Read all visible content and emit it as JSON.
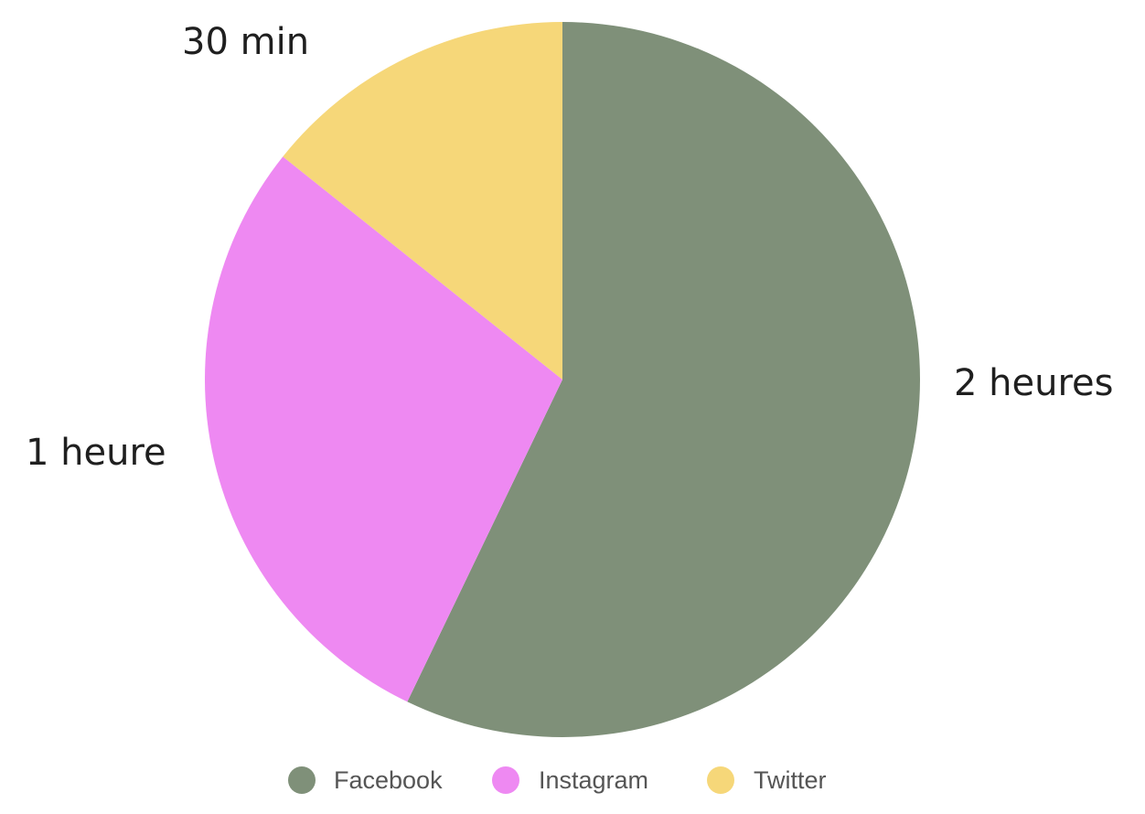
{
  "chart_data": {
    "type": "pie",
    "slices": [
      {
        "name": "Facebook",
        "value": 120,
        "label": "2 heures",
        "color": "#7f9079"
      },
      {
        "name": "Instagram",
        "value": 60,
        "label": "1 heure",
        "color": "#ee89f2"
      },
      {
        "name": "Twitter",
        "value": 30,
        "label": "30 min",
        "color": "#f6d779"
      }
    ],
    "legend": {
      "placement": "bottom",
      "entries": [
        "Facebook",
        "Instagram",
        "Twitter"
      ]
    }
  }
}
